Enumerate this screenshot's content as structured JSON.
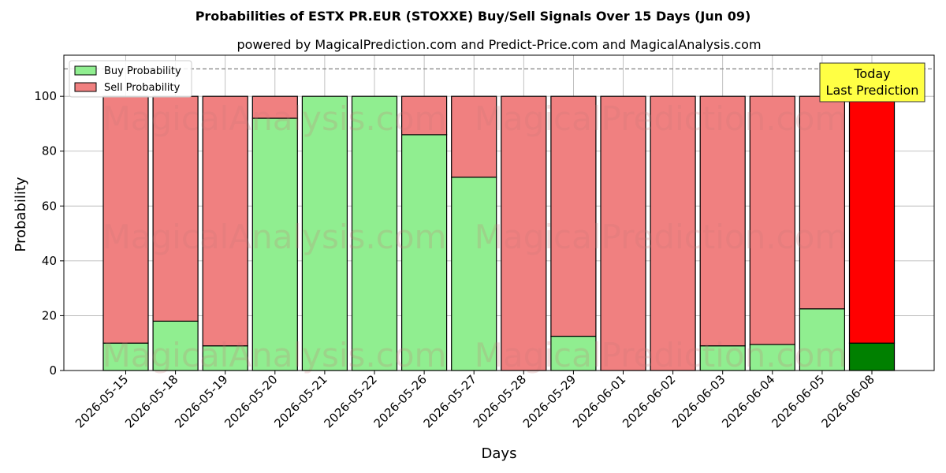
{
  "chart_data": {
    "type": "bar",
    "stacked": true,
    "title": "Probabilities of ESTX PR.EUR (STOXXE) Buy/Sell Signals Over 15 Days (Jun 09)",
    "subtitle": "powered by MagicalPrediction.com and Predict-Price.com and MagicalAnalysis.com",
    "xlabel": "Days",
    "ylabel": "Probability",
    "ylim": [
      0,
      115
    ],
    "yticks": [
      0,
      20,
      40,
      60,
      80,
      100
    ],
    "reference_line": 110,
    "grid": true,
    "legend_position": "top-left",
    "categories": [
      "2026-05-15",
      "2026-05-18",
      "2026-05-19",
      "2026-05-20",
      "2026-05-21",
      "2026-05-22",
      "2026-05-26",
      "2026-05-27",
      "2026-05-28",
      "2026-05-29",
      "2026-06-01",
      "2026-06-02",
      "2026-06-03",
      "2026-06-04",
      "2026-06-05",
      "2026-06-08"
    ],
    "series": [
      {
        "name": "Buy Probability",
        "color": "#90ee90",
        "values": [
          10,
          18,
          9,
          92,
          100,
          100,
          86,
          70.5,
          0,
          12.5,
          0,
          0,
          9,
          9.5,
          22.5,
          10
        ]
      },
      {
        "name": "Sell Probability",
        "color": "#f08080",
        "values": [
          90,
          82,
          91,
          8,
          0,
          0,
          14,
          29.5,
          100,
          87.5,
          100,
          100,
          91,
          90.5,
          77.5,
          90
        ]
      }
    ],
    "highlight": {
      "index": 15,
      "buy_color": "#008000",
      "sell_color": "#ff0000"
    },
    "annotation": {
      "lines": [
        "Today",
        "Last Prediction"
      ],
      "background": "#ffff44"
    },
    "watermarks": [
      "MagicalAnalysis.com",
      "MagicalPrediction.com"
    ]
  }
}
